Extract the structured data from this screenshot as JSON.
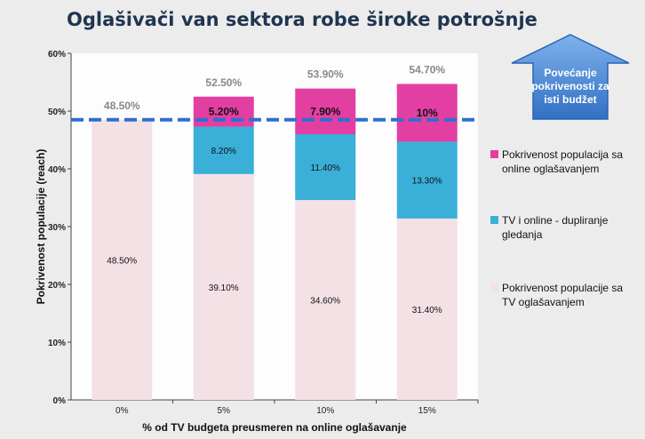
{
  "title": "Oglašivači van sektora robe široke potrošnje",
  "callout": {
    "icon": "up-arrow-icon",
    "text": "Povećanje pokrivenosti za isti budžet",
    "color": "#3f84d3"
  },
  "chart_data": {
    "type": "bar",
    "stacked": true,
    "categories": [
      "0%",
      "5%",
      "10%",
      "15%"
    ],
    "series": [
      {
        "name": "Pokrivenost populacije sa TV oglašavanjem",
        "color": "#f4e1e6",
        "values": [
          48.5,
          39.1,
          34.6,
          31.4
        ],
        "labels": [
          "48.50%",
          "39.10%",
          "34.60%",
          "31.40%"
        ]
      },
      {
        "name": "TV i online - dupliranje gledanja",
        "color": "#3aafd8",
        "values": [
          0,
          8.2,
          11.4,
          13.3
        ],
        "labels": [
          "",
          "8.20%",
          "11.40%",
          "13.30%"
        ]
      },
      {
        "name": "Pokrivenost populacija sa online oglašavanjem",
        "color": "#e33fa2",
        "values": [
          0,
          5.2,
          7.9,
          10
        ],
        "labels": [
          "",
          "5.20%",
          "7.90%",
          "10%"
        ]
      }
    ],
    "totals": [
      "48.50%",
      "52.50%",
      "53.90%",
      "54.70%"
    ],
    "reference_line": {
      "value": 48.5,
      "style": "dashed",
      "color": "#2f6fd0"
    },
    "xlabel": "% od TV budgeta preusmeren na online oglašavanje",
    "ylabel": "Pokrivenost populacije (reach)",
    "ylim": [
      0,
      60
    ],
    "yticks": [
      "0%",
      "10%",
      "20%",
      "30%",
      "40%",
      "50%",
      "60%"
    ],
    "legend_position": "right",
    "grid": false
  }
}
